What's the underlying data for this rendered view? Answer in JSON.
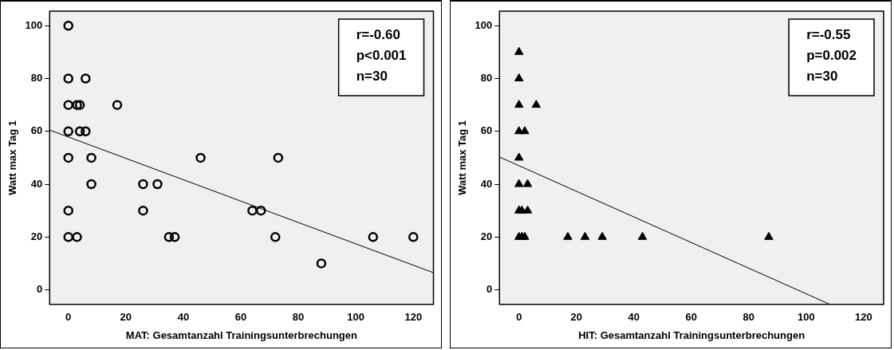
{
  "chart_data": [
    {
      "type": "scatter",
      "xlabel": "MAT: Gesamtanzahl Trainingsunterbrechungen",
      "ylabel": "Watt max Tag 1",
      "xlim": [
        -6.5,
        127
      ],
      "ylim": [
        -5.5,
        105.5
      ],
      "xticks": [
        0,
        20,
        40,
        60,
        80,
        100,
        120
      ],
      "yticks": [
        0,
        20,
        40,
        60,
        80,
        100
      ],
      "grid": false,
      "legend": false,
      "annotations": [
        "r=-0.60",
        "p<0.001",
        "n=30"
      ],
      "series": [
        {
          "color": "#000000",
          "marker": "circle",
          "x": [
            0,
            0,
            6,
            0,
            3,
            4,
            17,
            0,
            4,
            6,
            0,
            8,
            46,
            73,
            8,
            26,
            31,
            0,
            26,
            64,
            67,
            0,
            3,
            35,
            37,
            72,
            106,
            120,
            88
          ],
          "values": [
            100,
            80,
            80,
            70,
            70,
            70,
            70,
            60,
            60,
            60,
            50,
            50,
            50,
            50,
            40,
            40,
            40,
            30,
            30,
            30,
            30,
            20,
            20,
            20,
            20,
            20,
            20,
            20,
            10
          ]
        },
        {
          "type": "line",
          "color": "#000000",
          "marker": "none",
          "x": [
            -6.5,
            127
          ],
          "values": [
            60.5,
            6.5
          ]
        }
      ]
    },
    {
      "type": "scatter",
      "xlabel": "HIT: Gesamtanzahl Trainingsunterbrechungen",
      "ylabel": "Watt max Tag 1",
      "xlim": [
        -6.8,
        127
      ],
      "ylim": [
        -5.5,
        105.5
      ],
      "xticks": [
        0,
        20,
        40,
        60,
        80,
        100,
        120
      ],
      "yticks": [
        0,
        20,
        40,
        60,
        80,
        100
      ],
      "grid": false,
      "legend": false,
      "annotations": [
        "r=-0.55",
        "p=0.002",
        "n=30"
      ],
      "series": [
        {
          "color": "#000000",
          "marker": "triangle",
          "x": [
            0,
            0,
            0,
            6,
            0,
            2,
            0,
            0,
            3,
            0,
            1,
            3,
            0,
            1,
            2,
            17,
            23,
            29,
            43,
            87
          ],
          "values": [
            90,
            80,
            70,
            70,
            60,
            60,
            50,
            40,
            40,
            30,
            30,
            30,
            20,
            20,
            20,
            20,
            20,
            20,
            20,
            20
          ]
        },
        {
          "type": "line",
          "color": "#000000",
          "marker": "none",
          "x": [
            -6.8,
            108.3
          ],
          "values": [
            50.3,
            -5.5
          ]
        }
      ]
    }
  ]
}
